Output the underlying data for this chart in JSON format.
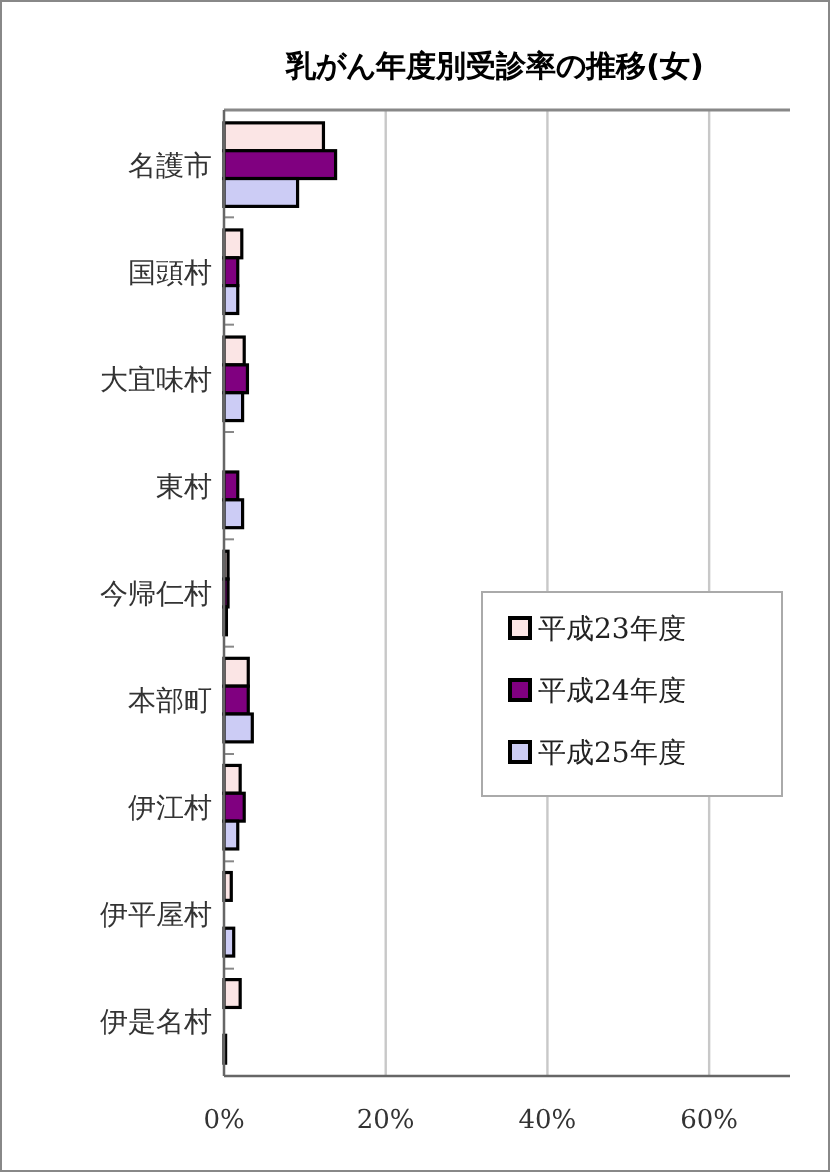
{
  "chart_data": {
    "type": "bar",
    "orientation": "horizontal",
    "title": "乳がん年度別受診率の推移(女)",
    "categories": [
      "名護市",
      "国頭村",
      "大宜味村",
      "東村",
      "今帰仁村",
      "本部町",
      "伊江村",
      "伊平屋村",
      "伊是名村"
    ],
    "series": [
      {
        "name": "平成23年度",
        "color": "#fbe5e5",
        "values": [
          12.3,
          2.2,
          2.5,
          0,
          0.5,
          3.0,
          2.0,
          0.9,
          2.0
        ]
      },
      {
        "name": "平成24年度",
        "color": "#800080",
        "values": [
          13.8,
          1.7,
          2.9,
          1.7,
          0.5,
          3.0,
          2.5,
          0,
          0
        ]
      },
      {
        "name": "平成25年度",
        "color": "#ccccf5",
        "values": [
          9.1,
          1.7,
          2.3,
          2.3,
          0.3,
          3.5,
          1.7,
          1.2,
          0.2
        ]
      }
    ],
    "xlim": [
      0,
      70
    ],
    "xticks": [
      {
        "value": 0,
        "label": "0%"
      },
      {
        "value": 20,
        "label": "20%"
      },
      {
        "value": 40,
        "label": "40%"
      },
      {
        "value": 60,
        "label": "60%"
      }
    ],
    "grid": "x",
    "legend": "right"
  }
}
